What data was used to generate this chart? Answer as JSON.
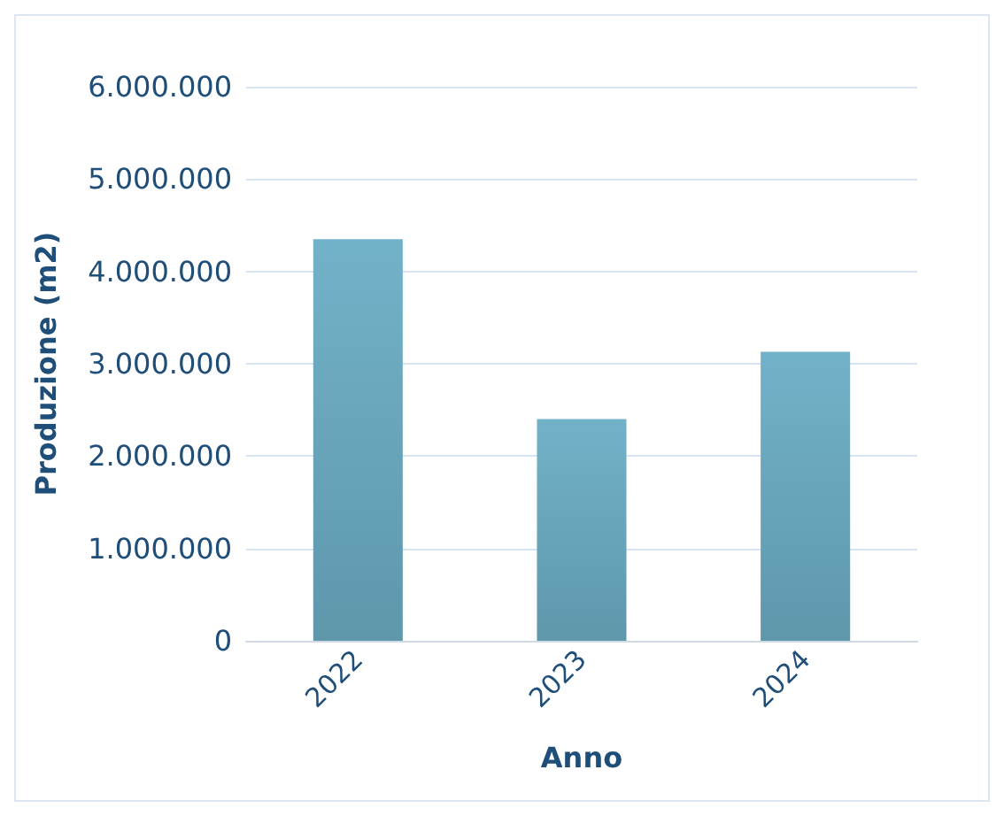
{
  "chart_data": {
    "type": "bar",
    "xlabel": "Anno",
    "ylabel": "Produzione (m2)",
    "categories": [
      "2022",
      "2023",
      "2024"
    ],
    "values": [
      4350000,
      2400000,
      3130000
    ],
    "color": "#72b2c8",
    "ylim": [
      0,
      6000000
    ],
    "yticks": [
      {
        "value": 0,
        "label": "0"
      },
      {
        "value": 1000000,
        "label": "1.000.000"
      },
      {
        "value": 2000000,
        "label": "2.000.000"
      },
      {
        "value": 3000000,
        "label": "3.000.000"
      },
      {
        "value": 4000000,
        "label": "4.000.000"
      },
      {
        "value": 5000000,
        "label": "5.000.000"
      },
      {
        "value": 6000000,
        "label": "6.000.000"
      }
    ],
    "grid": true
  }
}
